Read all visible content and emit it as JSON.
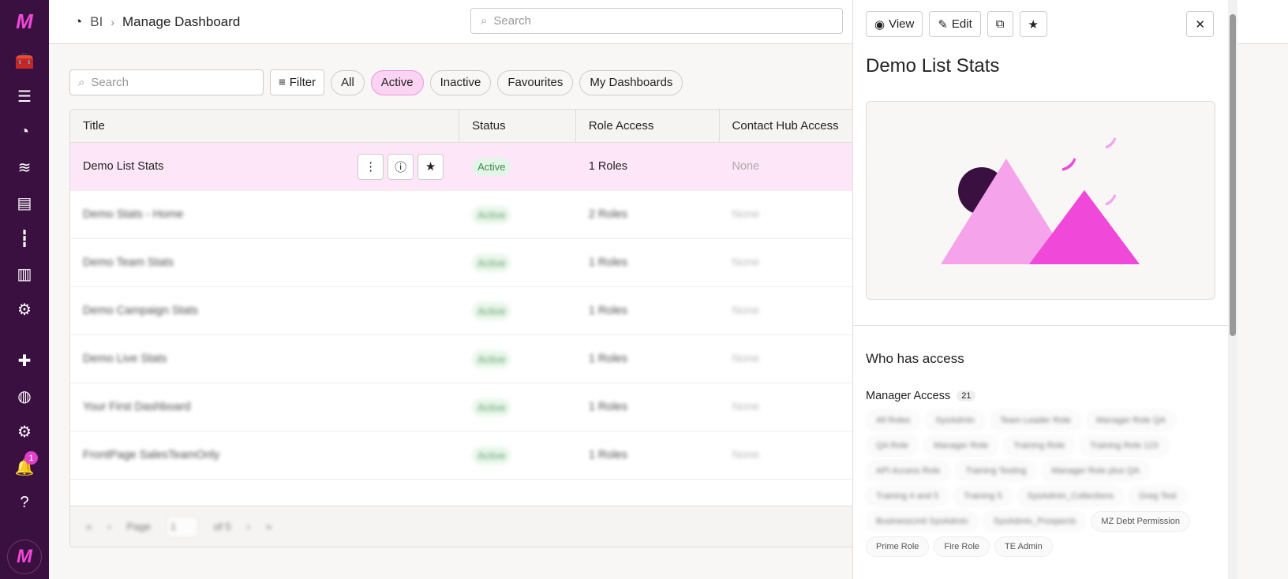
{
  "sidebar": {
    "logo": "M",
    "notifications": "1",
    "avatar": "M",
    "icons": [
      "toolbox-icon",
      "sliders-icon",
      "dashboard-gauge-icon",
      "database-icon",
      "certificate-file-icon",
      "audio-wave-icon",
      "report-file-icon",
      "cogs-icon",
      "puzzle-icon",
      "globe-icon",
      "settings-icon",
      "bell-icon",
      "help-icon"
    ]
  },
  "header": {
    "breadcrumb_root": "BI",
    "breadcrumb_sep": "›",
    "breadcrumb_current": "Manage Dashboard",
    "search_placeholder": "Search"
  },
  "toolbar": {
    "search_placeholder": "Search",
    "filter": "Filter",
    "pills": [
      "All",
      "Active",
      "Inactive",
      "Favourites",
      "My Dashboards"
    ],
    "active_pill": "Active"
  },
  "table": {
    "columns": [
      "Title",
      "Status",
      "Role Access",
      "Contact Hub Access"
    ],
    "rows": [
      {
        "title": "Demo List Stats",
        "status": "Active",
        "roles": "1 Roles",
        "hub": "None"
      },
      {
        "title": "Demo Stats - Home",
        "status": "Active",
        "roles": "2 Roles",
        "hub": "None"
      },
      {
        "title": "Demo Team Stats",
        "status": "Active",
        "roles": "1 Roles",
        "hub": "None"
      },
      {
        "title": "Demo Campaign Stats",
        "status": "Active",
        "roles": "1 Roles",
        "hub": "None"
      },
      {
        "title": "Demo Live Stats",
        "status": "Active",
        "roles": "1 Roles",
        "hub": "None"
      },
      {
        "title": "Your First Dashboard",
        "status": "Active",
        "roles": "1 Roles",
        "hub": "None"
      },
      {
        "title": "FrontPage SalesTeamOnly",
        "status": "Active",
        "roles": "1 Roles",
        "hub": "None"
      }
    ]
  },
  "pager": {
    "label": "Page",
    "value": "1",
    "of": "of 5"
  },
  "panel": {
    "view": "View",
    "edit": "Edit",
    "title": "Demo List Stats",
    "who": "Who has access",
    "manager_access": "Manager Access",
    "manager_count": "21",
    "roles": [
      "All Roles",
      "SysAdmin",
      "Team Leader Role",
      "Manager Role QA",
      "QA Role",
      "Manager Role",
      "Training Role",
      "Training Role 123",
      "API Access Role",
      "Training Testing",
      "Manager Role plus QA",
      "Training 4 and 5",
      "Training 5",
      "SysAdmin_Collections",
      "Greg Test",
      "BusinessUnit SysAdmin",
      "SysAdmin_Prospects",
      "MZ Debt Permission",
      "Prime Role",
      "Fire Role",
      "TE Admin"
    ]
  },
  "colors": {
    "sidebar": "#3a1040",
    "accent": "#f048d8",
    "selected_row": "#fde6f8",
    "active_pill": "#fbd3f3",
    "status_bg": "#e3f5e6"
  }
}
